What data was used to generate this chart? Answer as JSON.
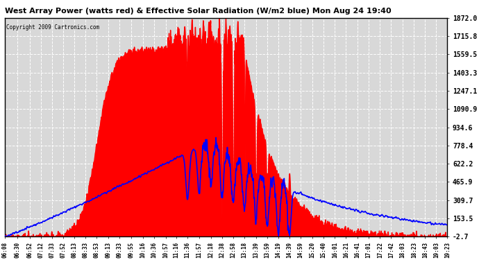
{
  "title": "West Array Power (watts red) & Effective Solar Radiation (W/m2 blue) Mon Aug 24 19:40",
  "copyright": "Copyright 2009 Cartronics.com",
  "y_min": -2.7,
  "y_max": 1872.0,
  "y_ticks": [
    1872.0,
    1715.8,
    1559.5,
    1403.3,
    1247.1,
    1090.9,
    934.6,
    778.4,
    622.2,
    465.9,
    309.7,
    153.5,
    -2.7
  ],
  "x_labels": [
    "06:08",
    "06:30",
    "06:52",
    "07:12",
    "07:33",
    "07:52",
    "08:13",
    "08:33",
    "08:53",
    "09:13",
    "09:33",
    "09:55",
    "10:16",
    "10:36",
    "10:57",
    "11:16",
    "11:36",
    "11:57",
    "12:18",
    "12:38",
    "12:58",
    "13:18",
    "13:39",
    "13:59",
    "14:19",
    "14:39",
    "14:59",
    "15:20",
    "15:40",
    "16:01",
    "16:21",
    "16:41",
    "17:01",
    "17:22",
    "17:42",
    "18:03",
    "18:23",
    "18:43",
    "19:03",
    "19:23"
  ],
  "bg_color": "#ffffff",
  "plot_bg_color": "#d8d8d8",
  "grid_color": "#ffffff",
  "red_color": "#ff0000",
  "blue_color": "#0000ff"
}
